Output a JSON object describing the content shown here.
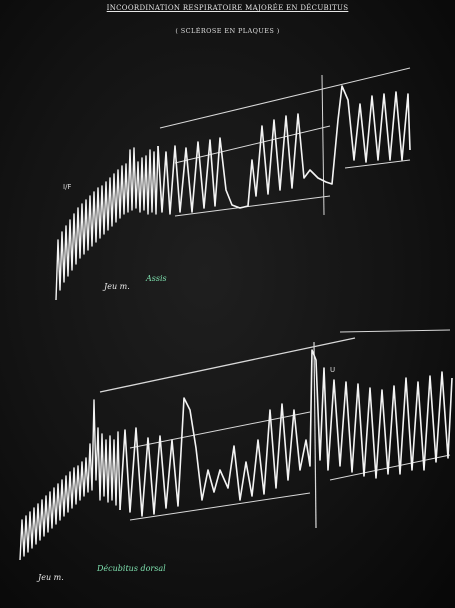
{
  "document": {
    "title": "INCOORDINATION RESPIRATOIRE MAJORÉE EN DÉCUBITUS",
    "subtitle": "( SCLÉROSE EN PLAQUES )"
  },
  "panels": [
    {
      "marker_label": "Jeu m.",
      "condition_label": "Assis",
      "side_mark": "I/F"
    },
    {
      "marker_label": "Jeu m.",
      "condition_label": "Décubitus dorsal",
      "side_mark": "U"
    }
  ],
  "colors": {
    "background": "#121212",
    "trace": "#f2f2f2",
    "handwriting_green": "#7fe3b0"
  }
}
